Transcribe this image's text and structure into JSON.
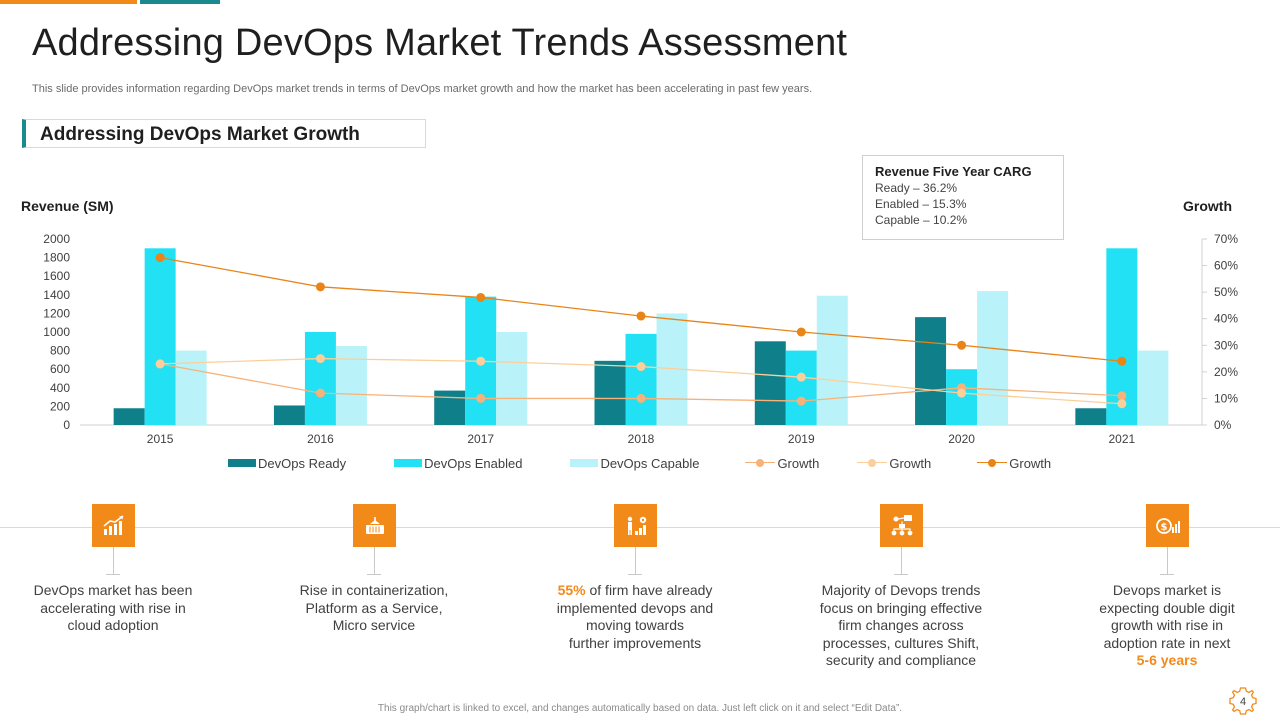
{
  "slide": {
    "title": "Addressing DevOps Market Trends Assessment",
    "subtitle": "This slide provides information regarding DevOps market trends in terms of DevOps market growth and how the market has been accelerating in past few years.",
    "section_title": "Addressing DevOps Market Growth",
    "footer": "This graph/chart is linked to excel, and changes automatically based on data. Just left click on it and select “Edit Data”.",
    "page_number": "4",
    "colors": {
      "accent": "#f28a1a",
      "teal": "#1a8a8f"
    }
  },
  "carg_box": {
    "heading": "Revenue Five Year CARG",
    "lines": [
      "Ready – 36.2%",
      "Enabled – 15.3%",
      "Capable  – 10.2%"
    ]
  },
  "chart_data": {
    "type": "bar",
    "title": "",
    "ylabel": "Revenue (SM)",
    "y2label": "Growth",
    "ylim": [
      0,
      2000
    ],
    "y_ticks": [
      "0",
      "200",
      "400",
      "600",
      "800",
      "1000",
      "1200",
      "1400",
      "1600",
      "1800",
      "2000"
    ],
    "y2lim": [
      0,
      70
    ],
    "y2_ticks": [
      "0%",
      "10%",
      "20%",
      "30%",
      "40%",
      "50%",
      "60%",
      "70%"
    ],
    "categories": [
      "2015",
      "2016",
      "2017",
      "2018",
      "2019",
      "2020",
      "2021"
    ],
    "series": [
      {
        "name": "DevOps Ready",
        "kind": "bar",
        "color": "#0f7f8a",
        "values": [
          180,
          210,
          370,
          690,
          900,
          1160,
          180
        ]
      },
      {
        "name": "DevOps Enabled",
        "kind": "bar",
        "color": "#22e1f5",
        "values": [
          1900,
          1000,
          1380,
          980,
          800,
          600,
          1900
        ]
      },
      {
        "name": "DevOps Capable",
        "kind": "bar",
        "color": "#b9f3f9",
        "values": [
          800,
          850,
          1000,
          1200,
          1390,
          1440,
          800
        ]
      },
      {
        "name": "Growth",
        "kind": "line",
        "axis": "y2",
        "color": "#f7b27a",
        "values": [
          23,
          12,
          10,
          10,
          9,
          14,
          11
        ]
      },
      {
        "name": "Growth",
        "kind": "line",
        "axis": "y2",
        "color": "#fbcf9a",
        "values": [
          23,
          25,
          24,
          22,
          18,
          12,
          8
        ]
      },
      {
        "name": "Growth",
        "kind": "line",
        "axis": "y2",
        "color": "#e88418",
        "values": [
          63,
          52,
          48,
          41,
          35,
          30,
          24
        ]
      }
    ],
    "legend_position": "bottom"
  },
  "timeline": [
    {
      "icon": "growth-chart-icon",
      "lines": [
        "DevOps market has been",
        "accelerating with rise in",
        "cloud adoption"
      ]
    },
    {
      "icon": "container-icon",
      "lines": [
        "Rise in containerization,",
        "Platform as a Service,",
        "Micro service"
      ]
    },
    {
      "icon": "growth-person-gear-icon",
      "highlight": "55%",
      "lines": [
        " of firm have already",
        "implemented devops and",
        "moving towards",
        "further improvements"
      ]
    },
    {
      "icon": "org-structure-icon",
      "lines": [
        "Majority of Devops trends",
        "focus on bringing effective",
        "firm changes across",
        "processes, cultures Shift,",
        "security and compliance"
      ]
    },
    {
      "icon": "dollar-chart-icon",
      "lines": [
        "Devops market is",
        "expecting double digit",
        "growth with rise in",
        "adoption rate in next"
      ],
      "highlight_end": "5-6 years"
    }
  ]
}
